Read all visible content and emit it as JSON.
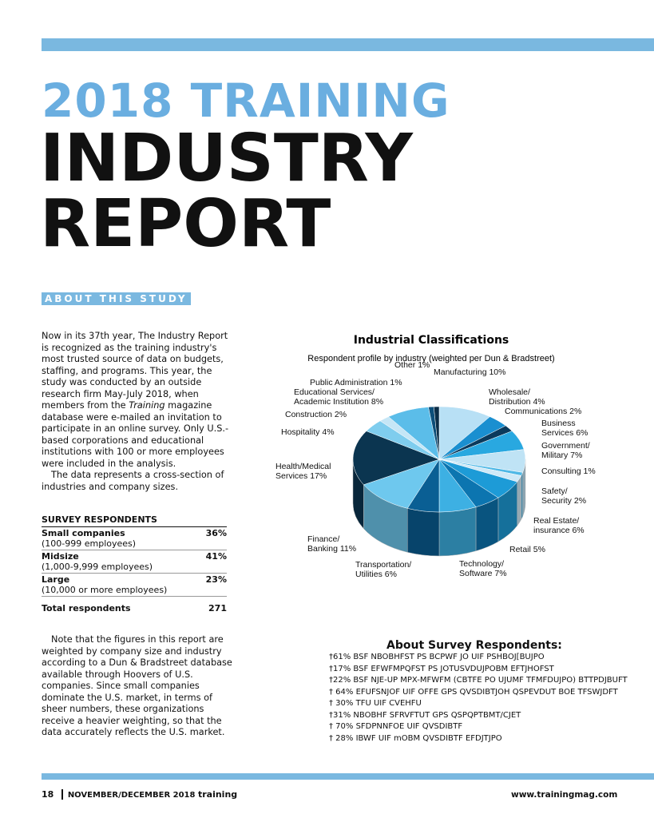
{
  "header": {
    "title_line1": "2018 TRAINING",
    "title_line2": "INDUSTRY",
    "title_line3": "REPORT"
  },
  "section_tag": "ABOUT THIS STUDY",
  "intro": {
    "before": "Now in its 37th year, The Industry Report is recognized as the training industry's most trusted source of data on budgets, staffing, and programs. This year, the study was conducted by an outside research firm May-July 2018, when members from the ",
    "emphasis": "Training",
    "after": " magazine database were e-mailed an invitation to participate in an online survey. Only U.S.-based corporations and educational institutions with 100 or more employees were included in the analysis.",
    "second": "The data represents a cross-section of industries and company sizes."
  },
  "table": {
    "title": "SURVEY RESPONDENTS",
    "rows": [
      [
        "Small companies",
        "(100-999 employees)",
        "36%"
      ],
      [
        "Midsize",
        "(1,000-9,999 employees)",
        "41%"
      ],
      [
        "Large",
        "(10,000 or more employees)",
        "23%"
      ]
    ],
    "total": [
      "Total respondents",
      "271"
    ]
  },
  "note": "Note that the figures in this report are weighted by company size and industry according to a Dun & Bradstreet database available through Hoovers of U.S. companies. Since small companies dominate the U.S. market, in terms of sheer numbers, these organizations receive a heavier weighting, so that the data accurately reflects the U.S. market.",
  "about": {
    "title": "About Survey Respondents:",
    "items": [
      "†61% BSF NBOBHFST PS BCPWF JO UIF PSHBOJ[BUJPO",
      "†17% BSF EFWFMPQFST PS JOTUSVDUJPOBM EFTJHOFST",
      "†22% BSF NJE-UP MPX-MFWFM (CBTFE PO UJUMF TFMFDUJPO) BTTPDJBUFT",
      "† 64% EFUFSNJOF UIF OFFE GPS QVSDIBTJOH QSPEVDUT BOE TFSWJDFT",
      "† 30% TFU UIF CVEHFU",
      "†31% NBOBHF SFRVFTUT GPS QSPQPTBMT/CJET",
      "† 70% SFDPNNFOE UIF QVSDIBTF",
      "† 28% IBWF UIF mOBM QVSDIBTF EFDJTJPO"
    ]
  },
  "footer": {
    "page": "18",
    "issue": "NOVEMBER/DECEMBER 2018",
    "brand": "training",
    "url": "www.trainingmag.com"
  },
  "chart_data": {
    "type": "pie",
    "title": "Industrial Classifications",
    "subtitle": "Respondent profile by industry (weighted per Dun & Bradstreet)",
    "categories": [
      "Manufacturing",
      "Wholesale/ Distribution",
      "Communications",
      "Business Services",
      "Government/ Military",
      "Consulting",
      "Safety/ Security",
      "Real Estate/ insurance",
      "Retail",
      "Technology/ Software",
      "Transportation/ Utilities",
      "Finance/ Banking",
      "Health/Medical Services",
      "Hospitality",
      "Construction",
      "Educational Services/ Academic Institution",
      "Public Administration",
      "Other"
    ],
    "values": [
      10,
      4,
      2,
      6,
      7,
      1,
      2,
      6,
      5,
      7,
      6,
      11,
      17,
      4,
      2,
      8,
      1,
      1
    ],
    "value_labels": [
      "10%",
      "4%",
      "2%",
      "6%",
      "7%",
      "1%",
      "2%",
      "6%",
      "5%",
      "7%",
      "6%",
      "11%",
      "17%",
      "4%",
      "2%",
      "8%",
      "1%",
      "1%"
    ],
    "colors": [
      "#b8e0f5",
      "#1a8fd0",
      "#0b3a5c",
      "#29a8e0",
      "#bfe3f5",
      "#4fb8e6",
      "#cfe9f7",
      "#1d9bd7",
      "#0c75b0",
      "#3db0e3",
      "#0a5f94",
      "#6ec8ee",
      "#0b3550",
      "#7fcdee",
      "#c5e6f6",
      "#5bbde9",
      "#0d4f7a",
      "#0b2e48"
    ]
  }
}
